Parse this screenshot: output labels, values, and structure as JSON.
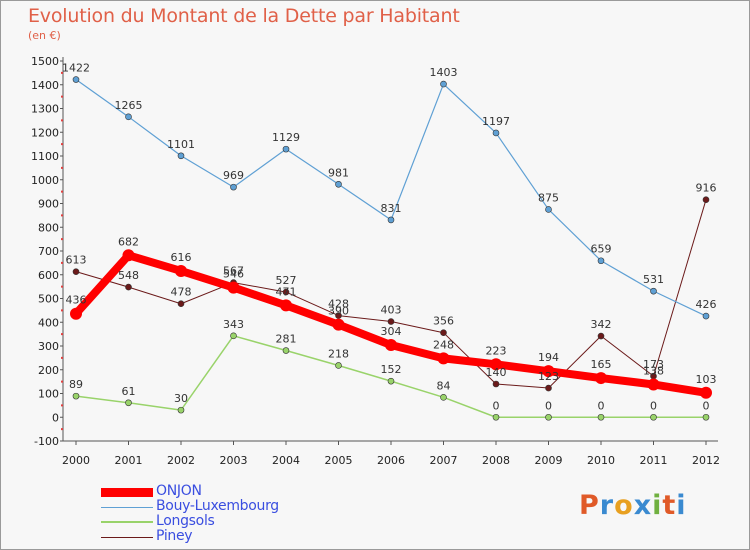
{
  "header": {
    "title": "Evolution du Montant de la Dette par Habitant",
    "subtitle": "(en €)"
  },
  "logo": {
    "text": "Proxiti",
    "letter_colors": [
      "#e05a28",
      "#3a8ad0",
      "#e8a020",
      "#3a8ad0",
      "#70b040",
      "#e05a28",
      "#3a8ad0"
    ]
  },
  "chart_data": {
    "type": "line",
    "title": "Evolution du Montant de la Dette par Habitant",
    "subtitle": "(en €)",
    "xlabel": "",
    "ylabel": "",
    "x": [
      "2000",
      "2001",
      "2002",
      "2003",
      "2004",
      "2005",
      "2006",
      "2007",
      "2008",
      "2009",
      "2010",
      "2011",
      "2012"
    ],
    "ylim": [
      -100,
      1500
    ],
    "yticks": [
      -100,
      0,
      100,
      200,
      300,
      400,
      500,
      600,
      700,
      800,
      900,
      1000,
      1100,
      1200,
      1300,
      1400,
      1500
    ],
    "grid": false,
    "legend_position": "bottom-left",
    "series": [
      {
        "name": "Piney",
        "color": "#6b1a1a",
        "width": 1,
        "values": [
          613,
          548,
          478,
          567,
          527,
          428,
          403,
          356,
          140,
          123,
          342,
          173,
          916
        ],
        "labels": [
          "613",
          "548",
          "478",
          "567",
          "527",
          "428",
          "403",
          "356",
          "140",
          "123",
          "342",
          "173",
          "916"
        ]
      },
      {
        "name": "Longsols",
        "color": "#99d36a",
        "width": 1.5,
        "values": [
          89,
          61,
          30,
          343,
          281,
          218,
          152,
          84,
          0,
          0,
          0,
          0,
          0
        ],
        "labels": [
          "89",
          "61",
          "30",
          "343",
          "281",
          "218",
          "152",
          "84",
          "0",
          "0",
          "0",
          "0",
          "0"
        ]
      },
      {
        "name": "Bouy-Luxembourg",
        "color": "#5fa0d4",
        "width": 1.2,
        "values": [
          1422,
          1265,
          1101,
          969,
          1129,
          981,
          831,
          1403,
          1197,
          875,
          659,
          531,
          426
        ],
        "labels": [
          "1422",
          "1265",
          "1101",
          "969",
          "1129",
          "981",
          "831",
          "1403",
          "1197",
          "875",
          "659",
          "531",
          "426"
        ]
      },
      {
        "name": "ONJON",
        "color": "#ff0000",
        "width": 8,
        "values": [
          436,
          682,
          616,
          546,
          471,
          390,
          304,
          248,
          223,
          194,
          165,
          138,
          103
        ],
        "labels": [
          "436",
          "682",
          "616",
          "546",
          "471",
          "390",
          "304",
          "248",
          "223",
          "194",
          "165",
          "138",
          "103"
        ]
      }
    ],
    "legend": [
      "ONJON",
      "Bouy-Luxembourg",
      "Longsols",
      "Piney"
    ]
  }
}
